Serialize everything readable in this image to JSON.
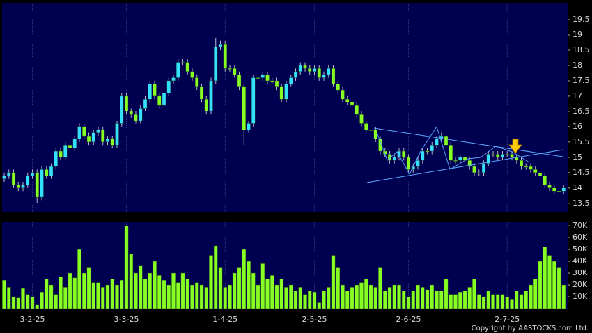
{
  "chart_data": [
    {
      "type": "candlestick",
      "up_color": "#33e0ff",
      "down_color": "#88ff22",
      "wick_color": "#b8b8c8",
      "open": [
        14.3,
        14.4,
        14.5,
        14.1,
        14.0,
        14.1,
        14.4,
        14.5,
        13.7,
        14.6,
        14.4,
        14.7,
        15.2,
        15.0,
        15.4,
        15.3,
        15.6,
        16.0,
        15.7,
        15.5,
        15.8,
        15.9,
        15.5,
        15.6,
        15.4,
        16.1,
        17.0,
        16.5,
        16.4,
        16.2,
        16.6,
        16.9,
        17.4,
        17.0,
        16.7,
        17.1,
        17.5,
        17.6,
        18.1,
        18.1,
        17.8,
        17.6,
        17.3,
        16.9,
        16.5,
        17.5,
        18.6,
        18.7,
        17.9,
        17.9,
        17.7,
        17.3,
        15.9,
        16.1,
        17.6,
        17.6,
        17.7,
        17.5,
        17.5,
        17.3,
        16.9,
        17.4,
        17.6,
        17.8,
        18.0,
        17.9,
        17.8,
        17.9,
        17.6,
        17.7,
        17.9,
        17.4,
        17.2,
        16.9,
        16.8,
        16.7,
        16.4,
        16.1,
        15.9,
        15.9,
        15.6,
        15.2,
        15.1,
        14.9,
        15.0,
        15.2,
        15.0,
        14.6,
        14.7,
        14.9,
        15.2,
        15.2,
        15.4,
        15.6,
        15.7,
        15.4,
        14.9,
        14.9,
        15.0,
        14.9,
        14.7,
        14.5,
        14.5,
        14.8,
        15.1,
        15.1,
        15.0,
        15.1,
        15.1,
        15.0,
        14.9,
        14.7,
        14.7,
        14.6,
        14.5,
        14.4,
        14.1,
        14.0,
        13.9,
        13.9
      ],
      "high": [
        14.5,
        14.6,
        14.6,
        14.2,
        14.2,
        14.5,
        14.6,
        14.6,
        14.7,
        14.7,
        14.8,
        15.3,
        15.3,
        15.5,
        15.5,
        15.7,
        16.1,
        16.1,
        15.8,
        15.9,
        16.0,
        16.0,
        15.7,
        15.7,
        16.2,
        17.1,
        17.1,
        16.6,
        16.5,
        16.7,
        17.0,
        17.5,
        17.5,
        17.1,
        17.2,
        17.6,
        17.7,
        18.2,
        18.2,
        18.2,
        17.9,
        17.7,
        17.4,
        17.0,
        17.6,
        18.9,
        18.8,
        18.8,
        18.0,
        18.0,
        17.8,
        17.4,
        16.2,
        17.7,
        17.7,
        17.8,
        17.8,
        17.6,
        17.6,
        17.4,
        17.5,
        17.7,
        17.9,
        18.1,
        18.1,
        18.0,
        18.0,
        18.0,
        17.8,
        18.0,
        18.0,
        17.5,
        17.3,
        17.0,
        16.9,
        16.8,
        16.5,
        16.2,
        16.0,
        16.0,
        15.7,
        15.3,
        15.2,
        15.1,
        15.3,
        15.3,
        15.1,
        14.8,
        15.0,
        15.3,
        15.3,
        15.5,
        15.7,
        15.8,
        15.8,
        15.5,
        15.0,
        15.1,
        15.1,
        15.0,
        14.8,
        14.6,
        14.9,
        15.2,
        15.2,
        15.2,
        15.2,
        15.2,
        15.2,
        15.1,
        15.0,
        14.8,
        14.8,
        14.7,
        14.6,
        14.5,
        14.2,
        14.1,
        14.0,
        14.1
      ],
      "low": [
        14.2,
        14.3,
        14.0,
        13.9,
        13.9,
        14.0,
        14.3,
        13.5,
        13.6,
        14.3,
        14.3,
        14.6,
        14.9,
        14.9,
        15.2,
        15.2,
        15.5,
        15.6,
        15.4,
        15.4,
        15.7,
        15.4,
        15.4,
        15.3,
        15.3,
        16.0,
        16.4,
        16.3,
        16.1,
        16.1,
        16.5,
        16.8,
        16.9,
        16.6,
        16.6,
        17.0,
        17.4,
        17.5,
        18.0,
        17.7,
        17.5,
        17.2,
        16.8,
        16.4,
        16.4,
        17.4,
        18.5,
        17.8,
        17.8,
        17.6,
        17.2,
        15.4,
        15.8,
        16.0,
        17.5,
        17.5,
        17.4,
        17.4,
        17.2,
        16.8,
        16.8,
        17.3,
        17.5,
        17.7,
        17.8,
        17.7,
        17.7,
        17.5,
        17.5,
        17.6,
        17.3,
        17.1,
        16.8,
        16.7,
        16.6,
        16.3,
        16.0,
        15.8,
        15.8,
        15.5,
        15.1,
        15.0,
        14.8,
        14.8,
        14.9,
        14.9,
        14.5,
        14.5,
        14.6,
        14.8,
        15.1,
        15.1,
        15.3,
        15.5,
        15.3,
        14.8,
        14.8,
        14.8,
        14.8,
        14.6,
        14.4,
        14.4,
        14.4,
        14.7,
        15.0,
        14.9,
        14.9,
        15.0,
        14.9,
        14.8,
        14.6,
        14.6,
        14.5,
        14.4,
        14.3,
        14.0,
        13.9,
        13.8,
        13.8,
        13.8
      ],
      "close": [
        14.4,
        14.5,
        14.1,
        14.0,
        14.1,
        14.4,
        14.5,
        13.7,
        14.6,
        14.4,
        14.7,
        15.2,
        15.0,
        15.4,
        15.3,
        15.6,
        16.0,
        15.7,
        15.5,
        15.8,
        15.9,
        15.5,
        15.6,
        15.4,
        16.1,
        17.0,
        16.5,
        16.4,
        16.2,
        16.6,
        16.9,
        17.4,
        17.0,
        16.7,
        17.1,
        17.5,
        17.6,
        18.1,
        18.1,
        17.8,
        17.6,
        17.3,
        16.9,
        16.5,
        17.5,
        18.6,
        18.7,
        17.9,
        17.9,
        17.7,
        17.3,
        15.9,
        16.1,
        17.6,
        17.6,
        17.7,
        17.5,
        17.5,
        17.3,
        16.9,
        17.4,
        17.6,
        17.8,
        18.0,
        17.9,
        17.8,
        17.9,
        17.6,
        17.7,
        17.9,
        17.4,
        17.2,
        16.9,
        16.8,
        16.7,
        16.4,
        16.1,
        15.9,
        15.9,
        15.6,
        15.2,
        15.1,
        14.9,
        15.0,
        15.2,
        15.0,
        14.6,
        14.7,
        14.9,
        15.2,
        15.2,
        15.4,
        15.6,
        15.7,
        15.4,
        14.9,
        14.9,
        15.0,
        14.9,
        14.7,
        14.5,
        14.5,
        14.8,
        15.1,
        15.1,
        15.0,
        15.1,
        15.1,
        15.0,
        14.9,
        14.7,
        14.7,
        14.6,
        14.5,
        14.4,
        14.1,
        14.0,
        13.9,
        13.9,
        14.0
      ],
      "ylim": [
        13.2,
        20.0
      ],
      "yticks": [
        13.5,
        14,
        14.5,
        15,
        15.5,
        16,
        16.5,
        17,
        17.5,
        18,
        18.5,
        19,
        19.5
      ]
    },
    {
      "type": "bar",
      "color": "#88ff22",
      "categories": [
        null,
        null,
        null,
        null,
        null,
        null,
        "3-2-25",
        null,
        null,
        null,
        null,
        null,
        null,
        null,
        null,
        null,
        null,
        null,
        null,
        null,
        null,
        null,
        null,
        null,
        null,
        null,
        "3-3-25",
        null,
        null,
        null,
        null,
        null,
        null,
        null,
        null,
        null,
        null,
        null,
        null,
        null,
        null,
        null,
        null,
        null,
        null,
        null,
        null,
        "1-4-25",
        null,
        null,
        null,
        null,
        null,
        null,
        null,
        null,
        null,
        null,
        null,
        null,
        null,
        null,
        null,
        null,
        null,
        null,
        "2-5-25",
        null,
        null,
        null,
        null,
        null,
        null,
        null,
        null,
        null,
        null,
        null,
        null,
        null,
        null,
        null,
        null,
        null,
        null,
        null,
        "2-6-25",
        null,
        null,
        null,
        null,
        null,
        null,
        null,
        null,
        null,
        null,
        null,
        null,
        null,
        null,
        null,
        null,
        null,
        null,
        null,
        null,
        "2-7-25",
        null,
        null,
        null,
        null,
        null,
        null,
        null,
        null,
        null,
        null,
        null,
        null
      ],
      "values": [
        24,
        18,
        10,
        9,
        17,
        12,
        10,
        3,
        14,
        25,
        20,
        12,
        27,
        18,
        30,
        26,
        50,
        30,
        35,
        22,
        22,
        18,
        20,
        25,
        20,
        24,
        70,
        46,
        30,
        36,
        25,
        30,
        40,
        28,
        24,
        20,
        30,
        22,
        30,
        25,
        20,
        22,
        20,
        18,
        45,
        53,
        35,
        18,
        20,
        30,
        35,
        50,
        40,
        30,
        20,
        38,
        25,
        28,
        20,
        25,
        18,
        20,
        15,
        18,
        12,
        15,
        14,
        5,
        15,
        18,
        45,
        35,
        20,
        15,
        18,
        20,
        22,
        25,
        20,
        18,
        35,
        15,
        18,
        20,
        20,
        15,
        10,
        15,
        20,
        18,
        16,
        20,
        15,
        15,
        25,
        12,
        12,
        14,
        15,
        18,
        25,
        12,
        10,
        15,
        12,
        12,
        12,
        10,
        8,
        15,
        12,
        15,
        20,
        25,
        40,
        52,
        45,
        40,
        35,
        20
      ],
      "ylim": [
        0,
        73
      ],
      "yticks": [
        {
          "value": 10,
          "label": "10K"
        },
        {
          "value": 20,
          "label": "20K"
        },
        {
          "value": 30,
          "label": "30K"
        },
        {
          "value": 40,
          "label": "40K"
        },
        {
          "value": 50,
          "label": "50K"
        },
        {
          "value": 60,
          "label": "60K"
        },
        {
          "value": 70,
          "label": "70K"
        }
      ],
      "copyright": "Copyright by AASTOCKS.com Ltd."
    }
  ]
}
